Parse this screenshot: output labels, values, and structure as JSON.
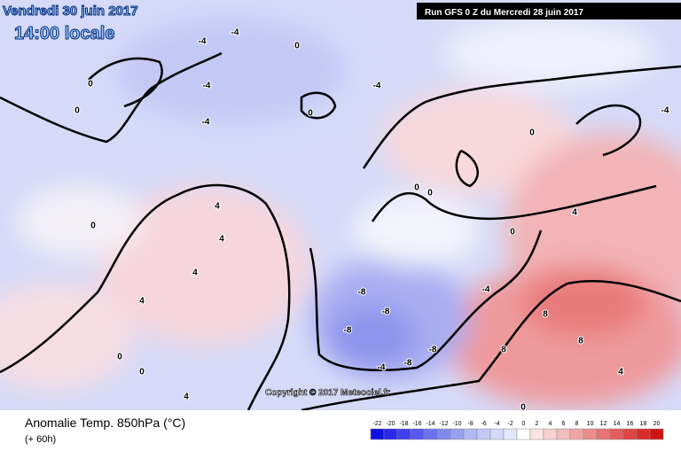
{
  "header": {
    "date": "Vendredi 30 juin 2017",
    "time": "14:00 locale",
    "run": "Run GFS 0 Z du Mercredi 28 juin 2017"
  },
  "copyright": "Copyright © 2017 Meteociel.fr",
  "legend": {
    "title": "Anomalie Temp. 850hPa (°C)",
    "lead": "(+ 60h)",
    "scale": [
      -22,
      -20,
      -18,
      -16,
      -14,
      -12,
      -10,
      -8,
      -6,
      -4,
      -2,
      0,
      2,
      4,
      6,
      8,
      10,
      12,
      14,
      16,
      18,
      20
    ],
    "colors": [
      "#1010e0",
      "#2828e8",
      "#4040ec",
      "#5858f0",
      "#6c70f0",
      "#8088f0",
      "#98a0f0",
      "#b0b8f4",
      "#c4c8f4",
      "#d4d8f8",
      "#e4e8fc",
      "#ffffff",
      "#fce4e4",
      "#f8d0d0",
      "#f4bcbc",
      "#f0a4a4",
      "#ec8c8c",
      "#e87474",
      "#e45c5c",
      "#e04444",
      "#d82c2c",
      "#d01414"
    ]
  },
  "contour_labels": [
    -4,
    0,
    -4,
    -4,
    0,
    0,
    -4,
    -4,
    0,
    4,
    4,
    4,
    4,
    0,
    0,
    0,
    4,
    0,
    0,
    0,
    -4,
    -8,
    -8,
    -8,
    -8,
    -8,
    -4,
    8,
    8,
    8,
    4,
    0,
    -4,
    4,
    0
  ]
}
